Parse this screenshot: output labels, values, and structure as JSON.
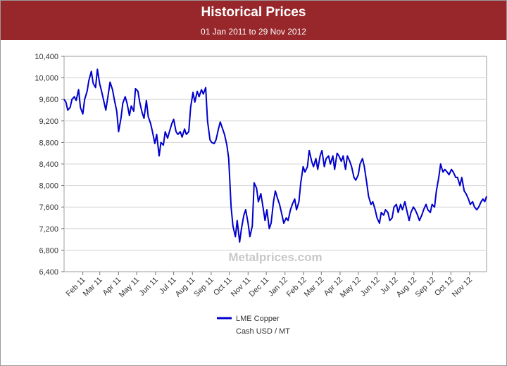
{
  "header": {
    "title": "Historical Prices",
    "subtitle": "01 Jan 2011 to 29 Nov 2012",
    "background_color": "#98272b"
  },
  "watermark": "Metalprices.com",
  "chart_data": {
    "type": "line",
    "title": "Historical Prices",
    "subtitle": "01 Jan 2011 to 29 Nov 2012",
    "xlabel": "",
    "ylabel": "",
    "x_range": [
      "2011-01-01",
      "2012-11-29"
    ],
    "ylim": [
      6400,
      10400
    ],
    "y_ticks": [
      6400,
      6800,
      7200,
      7600,
      8000,
      8400,
      8800,
      9200,
      9600,
      10000,
      10400
    ],
    "y_tick_labels": [
      "6,400",
      "6,800",
      "7,200",
      "7,600",
      "8,000",
      "8,400",
      "8,800",
      "9,200",
      "9,600",
      "10,000",
      "10,400"
    ],
    "x_ticks": [
      "2011-02-01",
      "2011-03-01",
      "2011-04-01",
      "2011-05-01",
      "2011-06-01",
      "2011-07-01",
      "2011-08-01",
      "2011-09-01",
      "2011-10-01",
      "2011-11-01",
      "2011-12-01",
      "2012-01-01",
      "2012-02-01",
      "2012-03-01",
      "2012-04-01",
      "2012-05-01",
      "2012-06-01",
      "2012-07-01",
      "2012-08-01",
      "2012-09-01",
      "2012-10-01",
      "2012-11-01"
    ],
    "x_tick_labels": [
      "Feb 11",
      "Mar 11",
      "Apr 11",
      "May 11",
      "Jun 11",
      "Jul 11",
      "Aug 11",
      "Sep 11",
      "Oct 11",
      "Nov 11",
      "Dec 11",
      "Jan 12",
      "Feb 12",
      "Mar 12",
      "Apr 12",
      "May 12",
      "Jun 12",
      "Jul 12",
      "Aug 12",
      "Sep 12",
      "Oct 12",
      "Nov 12"
    ],
    "grid": true,
    "legend_position": "bottom",
    "series": [
      {
        "name": "LME Copper",
        "color": "#0000cc",
        "points": [
          [
            "2011-01-01",
            9600
          ],
          [
            "2011-01-04",
            9550
          ],
          [
            "2011-01-07",
            9400
          ],
          [
            "2011-01-11",
            9450
          ],
          [
            "2011-01-14",
            9600
          ],
          [
            "2011-01-18",
            9650
          ],
          [
            "2011-01-21",
            9580
          ],
          [
            "2011-01-25",
            9780
          ],
          [
            "2011-01-28",
            9450
          ],
          [
            "2011-02-01",
            9330
          ],
          [
            "2011-02-04",
            9600
          ],
          [
            "2011-02-08",
            9750
          ],
          [
            "2011-02-11",
            9950
          ],
          [
            "2011-02-15",
            10120
          ],
          [
            "2011-02-18",
            9900
          ],
          [
            "2011-02-22",
            9820
          ],
          [
            "2011-02-25",
            10160
          ],
          [
            "2011-03-01",
            9880
          ],
          [
            "2011-03-04",
            9750
          ],
          [
            "2011-03-08",
            9550
          ],
          [
            "2011-03-11",
            9400
          ],
          [
            "2011-03-15",
            9700
          ],
          [
            "2011-03-18",
            9920
          ],
          [
            "2011-03-22",
            9780
          ],
          [
            "2011-03-25",
            9600
          ],
          [
            "2011-03-29",
            9380
          ],
          [
            "2011-04-01",
            9000
          ],
          [
            "2011-04-05",
            9250
          ],
          [
            "2011-04-08",
            9530
          ],
          [
            "2011-04-12",
            9650
          ],
          [
            "2011-04-15",
            9530
          ],
          [
            "2011-04-19",
            9300
          ],
          [
            "2011-04-22",
            9480
          ],
          [
            "2011-04-26",
            9380
          ],
          [
            "2011-04-29",
            9800
          ],
          [
            "2011-05-03",
            9750
          ],
          [
            "2011-05-06",
            9550
          ],
          [
            "2011-05-10",
            9350
          ],
          [
            "2011-05-13",
            9250
          ],
          [
            "2011-05-17",
            9580
          ],
          [
            "2011-05-20",
            9280
          ],
          [
            "2011-05-24",
            9150
          ],
          [
            "2011-05-27",
            9000
          ],
          [
            "2011-05-31",
            8780
          ],
          [
            "2011-06-03",
            8950
          ],
          [
            "2011-06-07",
            8550
          ],
          [
            "2011-06-10",
            8800
          ],
          [
            "2011-06-14",
            8750
          ],
          [
            "2011-06-17",
            9000
          ],
          [
            "2011-06-21",
            8880
          ],
          [
            "2011-06-24",
            9000
          ],
          [
            "2011-06-28",
            9150
          ],
          [
            "2011-07-01",
            9230
          ],
          [
            "2011-07-05",
            9000
          ],
          [
            "2011-07-08",
            8950
          ],
          [
            "2011-07-12",
            9000
          ],
          [
            "2011-07-15",
            8900
          ],
          [
            "2011-07-19",
            9050
          ],
          [
            "2011-07-22",
            8950
          ],
          [
            "2011-07-26",
            9000
          ],
          [
            "2011-07-29",
            9450
          ],
          [
            "2011-08-02",
            9730
          ],
          [
            "2011-08-05",
            9550
          ],
          [
            "2011-08-09",
            9750
          ],
          [
            "2011-08-12",
            9650
          ],
          [
            "2011-08-16",
            9780
          ],
          [
            "2011-08-19",
            9700
          ],
          [
            "2011-08-23",
            9820
          ],
          [
            "2011-08-26",
            9200
          ],
          [
            "2011-08-30",
            8850
          ],
          [
            "2011-09-02",
            8800
          ],
          [
            "2011-09-06",
            8780
          ],
          [
            "2011-09-09",
            8850
          ],
          [
            "2011-09-13",
            9050
          ],
          [
            "2011-09-16",
            9180
          ],
          [
            "2011-09-20",
            9050
          ],
          [
            "2011-09-23",
            8950
          ],
          [
            "2011-09-27",
            8750
          ],
          [
            "2011-09-30",
            8500
          ],
          [
            "2011-10-04",
            7600
          ],
          [
            "2011-10-07",
            7250
          ],
          [
            "2011-10-11",
            7050
          ],
          [
            "2011-10-14",
            7350
          ],
          [
            "2011-10-18",
            6950
          ],
          [
            "2011-10-21",
            7200
          ],
          [
            "2011-10-25",
            7450
          ],
          [
            "2011-10-28",
            7550
          ],
          [
            "2011-11-01",
            7300
          ],
          [
            "2011-11-04",
            7050
          ],
          [
            "2011-11-08",
            7250
          ],
          [
            "2011-11-11",
            8050
          ],
          [
            "2011-11-15",
            7950
          ],
          [
            "2011-11-18",
            7700
          ],
          [
            "2011-11-22",
            7850
          ],
          [
            "2011-11-25",
            7650
          ],
          [
            "2011-11-29",
            7350
          ],
          [
            "2011-12-02",
            7550
          ],
          [
            "2011-12-06",
            7200
          ],
          [
            "2011-12-09",
            7300
          ],
          [
            "2011-12-13",
            7700
          ],
          [
            "2011-12-16",
            7900
          ],
          [
            "2011-12-20",
            7750
          ],
          [
            "2011-12-23",
            7650
          ],
          [
            "2011-12-27",
            7450
          ],
          [
            "2011-12-30",
            7300
          ],
          [
            "2012-01-03",
            7400
          ],
          [
            "2012-01-06",
            7350
          ],
          [
            "2012-01-10",
            7550
          ],
          [
            "2012-01-13",
            7650
          ],
          [
            "2012-01-17",
            7750
          ],
          [
            "2012-01-20",
            7550
          ],
          [
            "2012-01-24",
            7700
          ],
          [
            "2012-01-27",
            8050
          ],
          [
            "2012-01-31",
            8350
          ],
          [
            "2012-02-03",
            8250
          ],
          [
            "2012-02-07",
            8350
          ],
          [
            "2012-02-10",
            8650
          ],
          [
            "2012-02-14",
            8450
          ],
          [
            "2012-02-17",
            8350
          ],
          [
            "2012-02-21",
            8500
          ],
          [
            "2012-02-24",
            8300
          ],
          [
            "2012-02-28",
            8550
          ],
          [
            "2012-03-02",
            8650
          ],
          [
            "2012-03-06",
            8350
          ],
          [
            "2012-03-09",
            8500
          ],
          [
            "2012-03-13",
            8550
          ],
          [
            "2012-03-16",
            8400
          ],
          [
            "2012-03-20",
            8550
          ],
          [
            "2012-03-23",
            8300
          ],
          [
            "2012-03-27",
            8600
          ],
          [
            "2012-03-30",
            8550
          ],
          [
            "2012-04-03",
            8450
          ],
          [
            "2012-04-06",
            8550
          ],
          [
            "2012-04-10",
            8300
          ],
          [
            "2012-04-13",
            8550
          ],
          [
            "2012-04-17",
            8450
          ],
          [
            "2012-04-20",
            8350
          ],
          [
            "2012-04-24",
            8150
          ],
          [
            "2012-04-27",
            8100
          ],
          [
            "2012-05-01",
            8200
          ],
          [
            "2012-05-04",
            8400
          ],
          [
            "2012-05-08",
            8500
          ],
          [
            "2012-05-11",
            8350
          ],
          [
            "2012-05-15",
            8050
          ],
          [
            "2012-05-18",
            7800
          ],
          [
            "2012-05-22",
            7650
          ],
          [
            "2012-05-25",
            7700
          ],
          [
            "2012-05-29",
            7550
          ],
          [
            "2012-06-01",
            7400
          ],
          [
            "2012-06-05",
            7300
          ],
          [
            "2012-06-08",
            7500
          ],
          [
            "2012-06-12",
            7450
          ],
          [
            "2012-06-15",
            7550
          ],
          [
            "2012-06-19",
            7500
          ],
          [
            "2012-06-22",
            7350
          ],
          [
            "2012-06-26",
            7400
          ],
          [
            "2012-06-29",
            7600
          ],
          [
            "2012-07-03",
            7650
          ],
          [
            "2012-07-06",
            7500
          ],
          [
            "2012-07-10",
            7650
          ],
          [
            "2012-07-13",
            7550
          ],
          [
            "2012-07-17",
            7700
          ],
          [
            "2012-07-20",
            7550
          ],
          [
            "2012-07-24",
            7350
          ],
          [
            "2012-07-27",
            7500
          ],
          [
            "2012-07-31",
            7600
          ],
          [
            "2012-08-03",
            7550
          ],
          [
            "2012-08-07",
            7450
          ],
          [
            "2012-08-10",
            7350
          ],
          [
            "2012-08-14",
            7450
          ],
          [
            "2012-08-17",
            7550
          ],
          [
            "2012-08-21",
            7650
          ],
          [
            "2012-08-24",
            7550
          ],
          [
            "2012-08-28",
            7500
          ],
          [
            "2012-08-31",
            7650
          ],
          [
            "2012-09-04",
            7600
          ],
          [
            "2012-09-07",
            7900
          ],
          [
            "2012-09-11",
            8150
          ],
          [
            "2012-09-14",
            8400
          ],
          [
            "2012-09-18",
            8250
          ],
          [
            "2012-09-21",
            8300
          ],
          [
            "2012-09-25",
            8250
          ],
          [
            "2012-09-28",
            8200
          ],
          [
            "2012-10-02",
            8300
          ],
          [
            "2012-10-05",
            8250
          ],
          [
            "2012-10-09",
            8150
          ],
          [
            "2012-10-12",
            8150
          ],
          [
            "2012-10-16",
            8000
          ],
          [
            "2012-10-19",
            8150
          ],
          [
            "2012-10-23",
            7900
          ],
          [
            "2012-10-26",
            7850
          ],
          [
            "2012-10-30",
            7750
          ],
          [
            "2012-11-02",
            7650
          ],
          [
            "2012-11-06",
            7700
          ],
          [
            "2012-11-09",
            7600
          ],
          [
            "2012-11-13",
            7550
          ],
          [
            "2012-11-16",
            7600
          ],
          [
            "2012-11-20",
            7700
          ],
          [
            "2012-11-23",
            7750
          ],
          [
            "2012-11-26",
            7700
          ],
          [
            "2012-11-29",
            7800
          ]
        ]
      }
    ],
    "legend": {
      "label": "LME Copper",
      "sublabel": "Cash USD / MT"
    }
  }
}
